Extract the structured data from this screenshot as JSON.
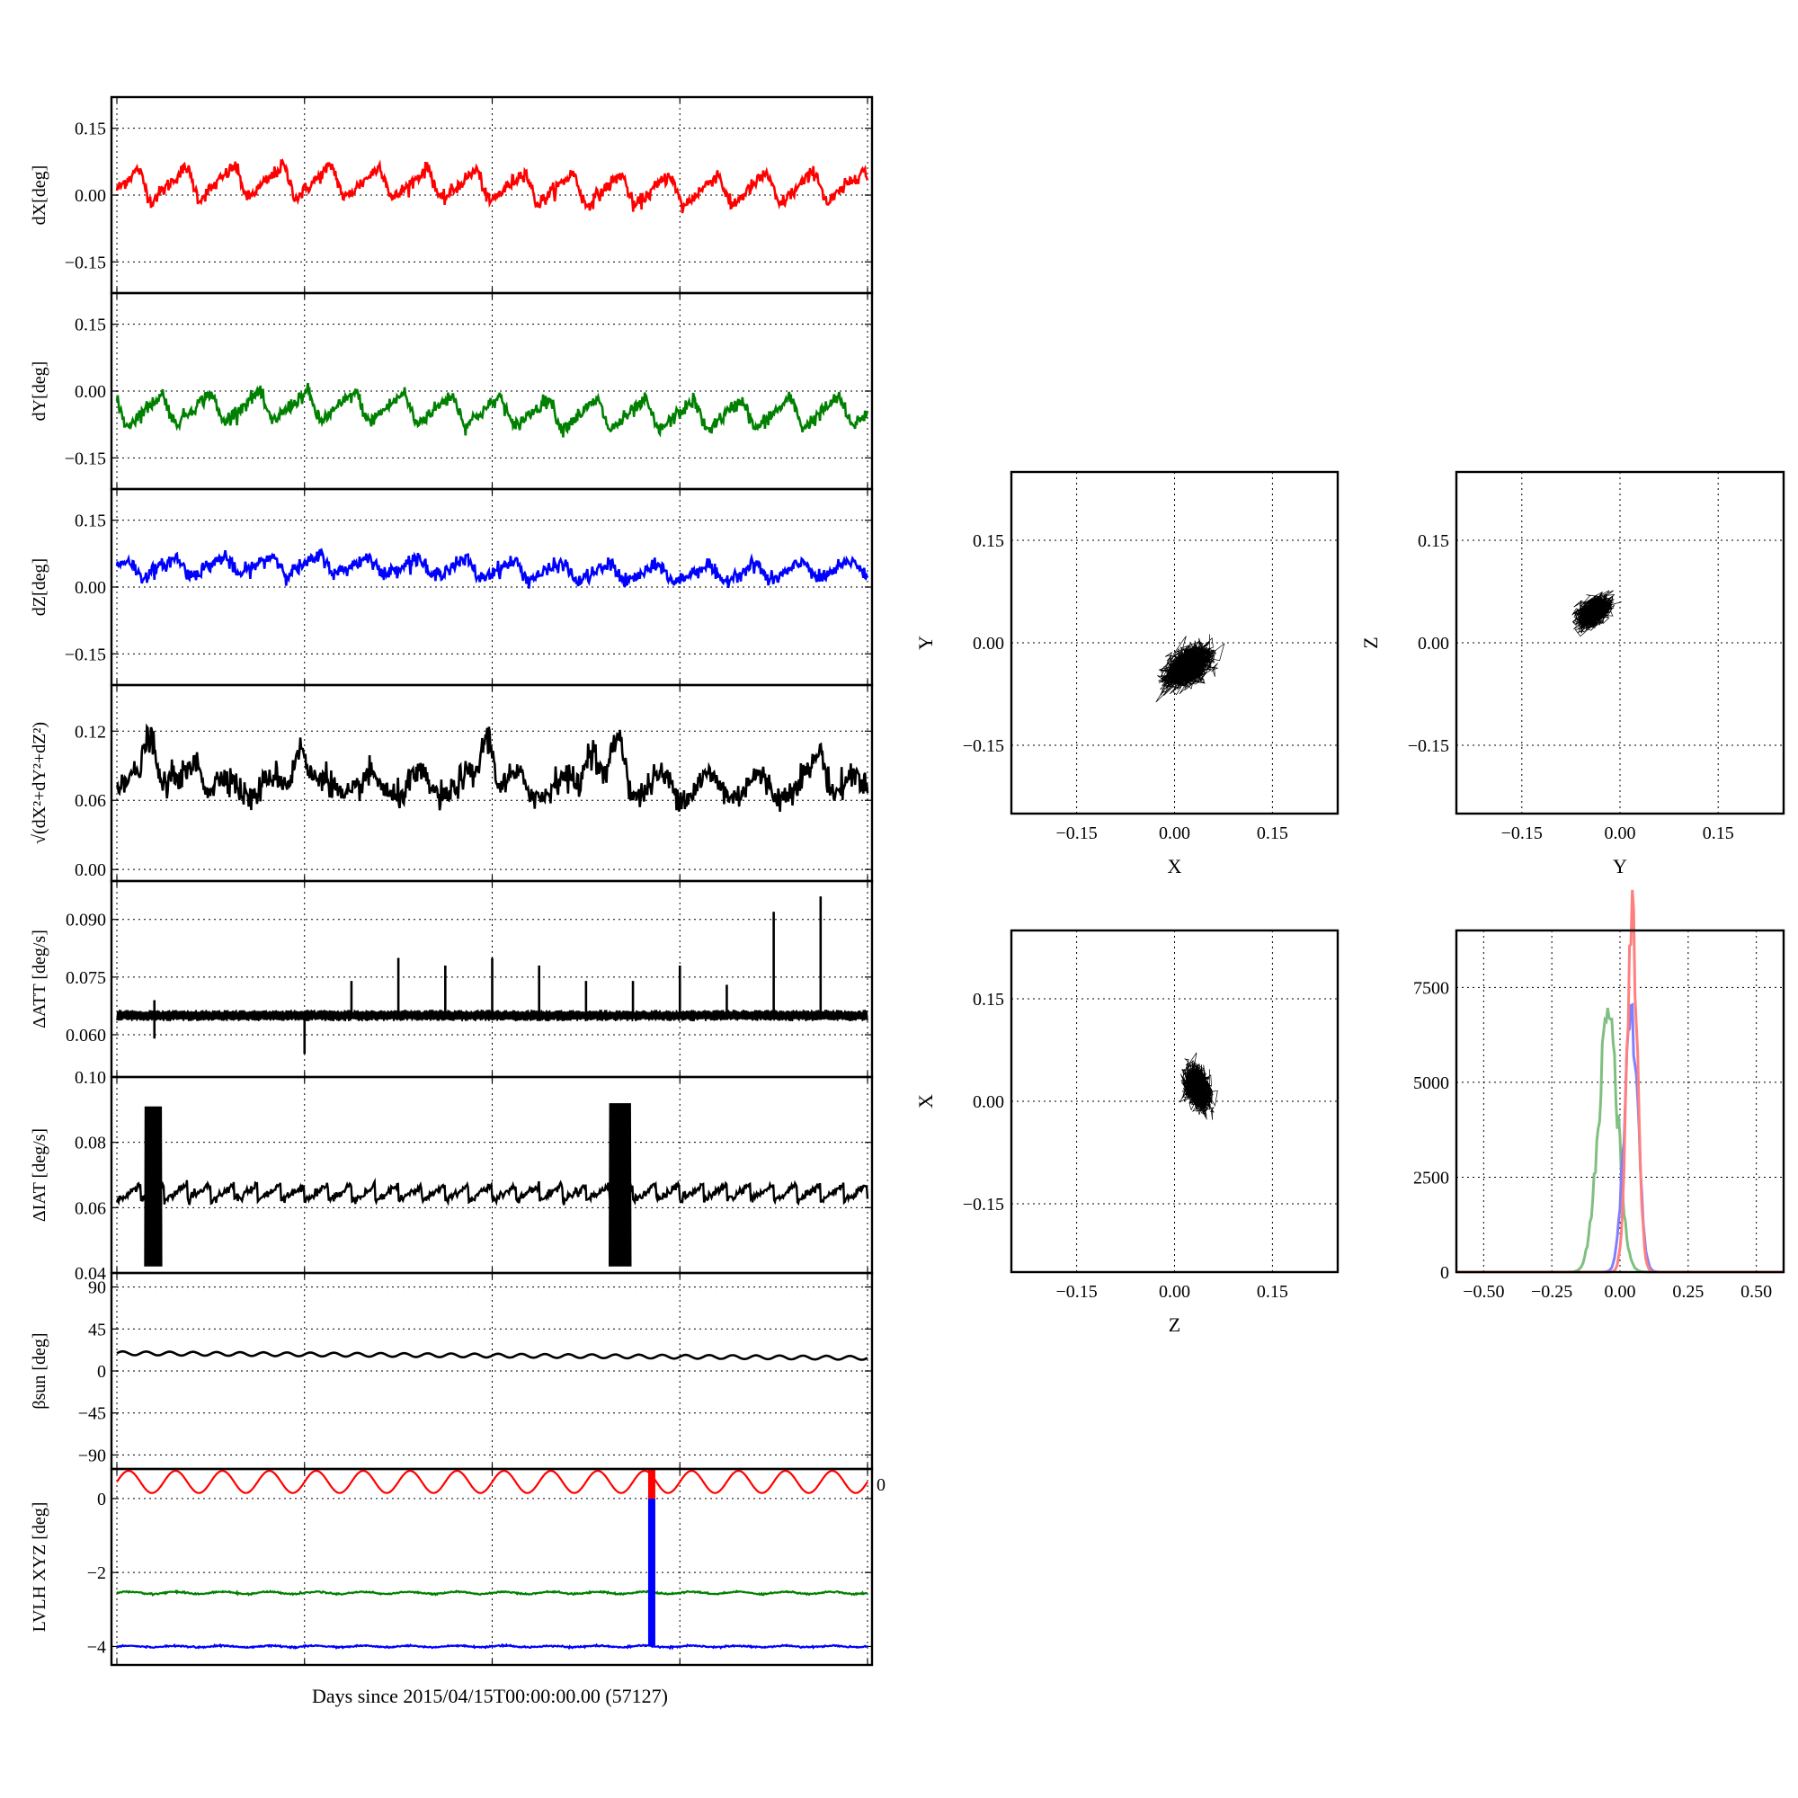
{
  "figure": {
    "xlabel": "Days since 2015/04/15T00:00:00.00 (57127)"
  },
  "colors": {
    "x": "#ff0000",
    "y": "#008000",
    "z": "#0000ff",
    "black": "#000000",
    "hist_x": "#ff7f7f",
    "hist_y": "#7fbf7f",
    "hist_z": "#7f7fff"
  },
  "chart_data": [
    {
      "id": "dx",
      "type": "line",
      "ylabel": "dX[deg]",
      "xlim": [
        0,
        16
      ],
      "ylim": [
        -0.22,
        0.22
      ],
      "yticks": [
        -0.15,
        0.0,
        0.15
      ],
      "ytick_labels": [
        "−0.15",
        "0.00",
        "0.15"
      ],
      "grid": true,
      "color": "#ff0000",
      "series": {
        "mean": 0.02,
        "amp": 0.038,
        "period_days": 1.03,
        "noise": 0.008,
        "extremes": [
          -0.085,
          0.105
        ]
      }
    },
    {
      "id": "dy",
      "type": "line",
      "ylabel": "dY[deg]",
      "xlim": [
        0,
        16
      ],
      "ylim": [
        -0.22,
        0.22
      ],
      "yticks": [
        -0.15,
        0.0,
        0.15
      ],
      "ytick_labels": [
        "−0.15",
        "0.00",
        "0.15"
      ],
      "grid": true,
      "color": "#008000",
      "series": {
        "mean": -0.045,
        "amp": 0.035,
        "period_days": 1.03,
        "noise": 0.008,
        "extremes": [
          -0.115,
          0.03
        ]
      }
    },
    {
      "id": "dz",
      "type": "line",
      "ylabel": "dZ[deg]",
      "xlim": [
        0,
        16
      ],
      "ylim": [
        -0.22,
        0.22
      ],
      "yticks": [
        -0.15,
        0.0,
        0.15
      ],
      "ytick_labels": [
        "−0.15",
        "0.00",
        "0.15"
      ],
      "grid": true,
      "color": "#0000ff",
      "series": {
        "mean": 0.04,
        "amp": 0.022,
        "period_days": 1.03,
        "noise": 0.008,
        "extremes": [
          -0.03,
          0.11
        ]
      }
    },
    {
      "id": "dr",
      "type": "line",
      "ylabel": "√(dX²+dY²+dZ²)",
      "xlim": [
        0,
        16
      ],
      "ylim": [
        -0.01,
        0.16
      ],
      "yticks": [
        0.0,
        0.06,
        0.12
      ],
      "ytick_labels": [
        "0.00",
        "0.06",
        "0.12"
      ],
      "grid": true,
      "color": "#000000",
      "series": {
        "mean": 0.072,
        "amp": 0.01,
        "period_days": 1.03,
        "noise": 0.006,
        "peaks": [
          [
            0.7,
            0.125
          ],
          [
            1.7,
            0.1
          ],
          [
            3.9,
            0.115
          ],
          [
            7.9,
            0.125
          ],
          [
            10.1,
            0.115
          ],
          [
            10.7,
            0.11
          ],
          [
            15.0,
            0.105
          ]
        ]
      }
    },
    {
      "id": "datt",
      "type": "line",
      "ylabel": "ΔATT [deg/s]",
      "xlim": [
        0,
        16
      ],
      "ylim": [
        0.049,
        0.1
      ],
      "yticks": [
        0.06,
        0.075,
        0.09
      ],
      "ytick_labels": [
        "0.060",
        "0.075",
        "0.090"
      ],
      "grid": true,
      "color": "#000000",
      "series": {
        "baseline": 0.065,
        "band": 0.0015,
        "spikes": [
          [
            0.8,
            0.069
          ],
          [
            0.8,
            0.059
          ],
          [
            4.0,
            0.055
          ],
          [
            5.0,
            0.074
          ],
          [
            6.0,
            0.08
          ],
          [
            7.0,
            0.078
          ],
          [
            8.0,
            0.08
          ],
          [
            9.0,
            0.078
          ],
          [
            10.0,
            0.074
          ],
          [
            11.0,
            0.074
          ],
          [
            12.0,
            0.078
          ],
          [
            13.0,
            0.073
          ],
          [
            14.0,
            0.092
          ],
          [
            15.0,
            0.096
          ]
        ]
      }
    },
    {
      "id": "diat",
      "type": "line",
      "ylabel": "ΔIAT [deg/s]",
      "xlim": [
        0,
        16
      ],
      "ylim": [
        0.04,
        0.1
      ],
      "yticks": [
        0.04,
        0.06,
        0.08,
        0.1
      ],
      "ytick_labels": [
        "0.04",
        "0.06",
        "0.08",
        "0.10"
      ],
      "grid": true,
      "color": "#000000",
      "series": {
        "sawtooth_low": 0.062,
        "sawtooth_high": 0.067,
        "sawtooth_period_days": 0.5,
        "bursts": [
          [
            0.6,
            0.95,
            0.042,
            0.091
          ],
          [
            10.5,
            10.95,
            0.042,
            0.092
          ]
        ]
      }
    },
    {
      "id": "beta",
      "type": "line",
      "ylabel": "βsun [deg]",
      "xlim": [
        0,
        16
      ],
      "ylim": [
        -105,
        105
      ],
      "yticks": [
        -90,
        -45,
        0,
        45,
        90
      ],
      "ytick_labels": [
        "−90",
        "−45",
        "0",
        "45",
        "90"
      ],
      "grid": true,
      "color": "#000000",
      "series": {
        "start": 19,
        "end": 14,
        "amp": 2,
        "period_days": 0.5
      }
    },
    {
      "id": "lvlh",
      "type": "line",
      "ylabel": "LVLH XYZ [deg]",
      "xlim": [
        0,
        16
      ],
      "ylim": [
        -4.5,
        0.8
      ],
      "yticks": [
        -4,
        -2,
        0
      ],
      "ytick_labels": [
        "−4",
        "−2",
        "0"
      ],
      "grid": true,
      "right_label": "0",
      "series": [
        {
          "color": "#ff0000",
          "mean": 0.45,
          "amp": 0.3,
          "period_days": 1.0
        },
        {
          "color": "#008000",
          "mean": -2.55,
          "amp": 0.03,
          "period_days": 1.0
        },
        {
          "color": "#0000ff",
          "mean": -4.0,
          "amp": 0.02,
          "period_days": 1.0
        }
      ],
      "event": {
        "day": 11.4,
        "red_from": 0.8,
        "red_to": 0.0,
        "blue_from": 0.0,
        "blue_to": -4.0
      }
    },
    {
      "id": "xy",
      "type": "scatter",
      "xlabel": "X",
      "ylabel": "Y",
      "xlim": [
        -0.25,
        0.25
      ],
      "ylim": [
        -0.25,
        0.25
      ],
      "ticks": [
        -0.15,
        0.0,
        0.15
      ],
      "tick_labels": [
        "−0.15",
        "0.00",
        "0.15"
      ],
      "grid": true,
      "cloud": {
        "cx": 0.02,
        "cy": -0.035,
        "sx": 0.04,
        "sy": 0.035,
        "rho": 0.5
      }
    },
    {
      "id": "yz",
      "type": "scatter",
      "xlabel": "Y",
      "ylabel": "Z",
      "xlim": [
        -0.25,
        0.25
      ],
      "ylim": [
        -0.25,
        0.25
      ],
      "ticks": [
        -0.15,
        0.0,
        0.15
      ],
      "tick_labels": [
        "−0.15",
        "0.00",
        "0.15"
      ],
      "grid": true,
      "cloud": {
        "cx": -0.04,
        "cy": 0.045,
        "sx": 0.028,
        "sy": 0.025,
        "rho": 0.5
      }
    },
    {
      "id": "zx",
      "type": "scatter",
      "xlabel": "Z",
      "ylabel": "X",
      "xlim": [
        -0.25,
        0.25
      ],
      "ylim": [
        -0.25,
        0.25
      ],
      "ticks": [
        -0.15,
        0.0,
        0.15
      ],
      "tick_labels": [
        "−0.15",
        "0.00",
        "0.15"
      ],
      "grid": true,
      "cloud": {
        "cx": 0.035,
        "cy": 0.02,
        "sx": 0.022,
        "sy": 0.035,
        "rho": -0.3
      }
    },
    {
      "id": "hist",
      "type": "histogram",
      "xlim": [
        -0.6,
        0.6
      ],
      "ylim": [
        0,
        9000
      ],
      "xticks": [
        -0.5,
        -0.25,
        0.0,
        0.25,
        0.5
      ],
      "xtick_labels": [
        "−0.50",
        "−0.25",
        "0.00",
        "0.25",
        "0.50"
      ],
      "yticks": [
        0,
        2500,
        5000,
        7500
      ],
      "ytick_labels": [
        "0",
        "2500",
        "5000",
        "7500"
      ],
      "grid": true,
      "series": [
        {
          "color": "#7fbf7f",
          "mean": -0.045,
          "sd": 0.035,
          "peak": 6900
        },
        {
          "color": "#7f7fff",
          "mean": 0.04,
          "sd": 0.025,
          "peak": 6800
        },
        {
          "color": "#ff7f7f",
          "mean": 0.045,
          "sd": 0.02,
          "peak": 8800
        }
      ]
    }
  ]
}
